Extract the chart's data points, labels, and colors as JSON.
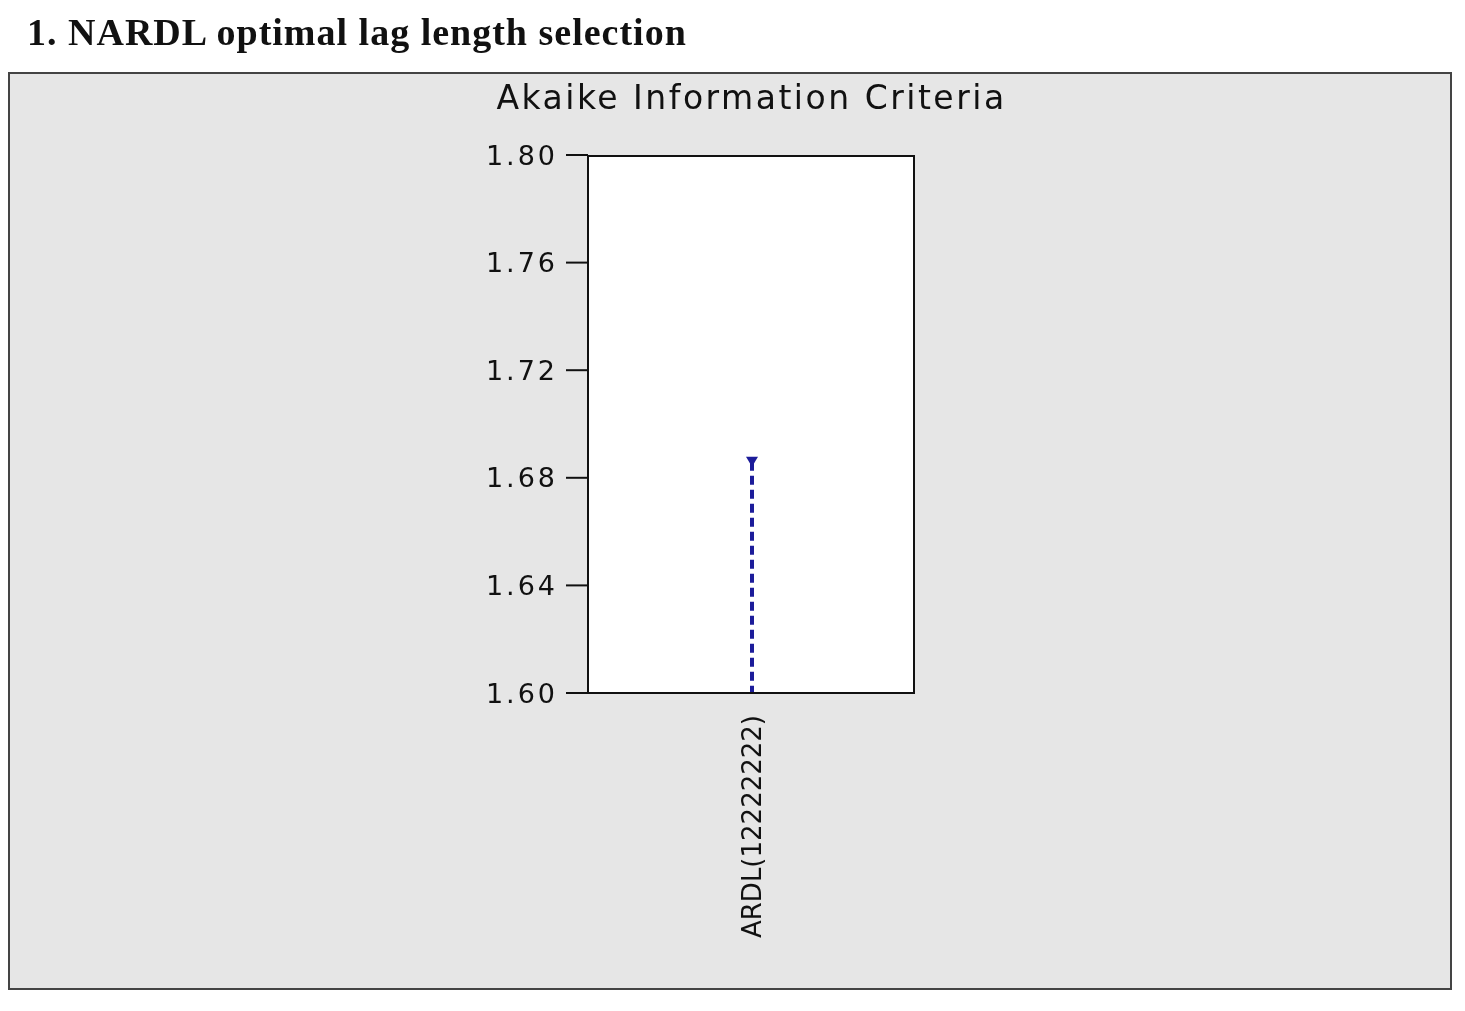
{
  "chart_data": {
    "type": "lollipop",
    "title": "1. NARDL optimal lag length selection",
    "subtitle": "Akaike Information Criteria",
    "categories": [
      "ARDL(12222222)"
    ],
    "values": [
      1.686
    ],
    "color": "#1c1c9a",
    "ylim": [
      1.6,
      1.8
    ],
    "yticks": [
      {
        "value": 1.6,
        "label": "1.60"
      },
      1.64,
      1.68,
      1.72,
      1.76,
      {
        "value": 1.8,
        "label": "1.80"
      }
    ],
    "marker": "triangle",
    "line_style": "dashed"
  }
}
